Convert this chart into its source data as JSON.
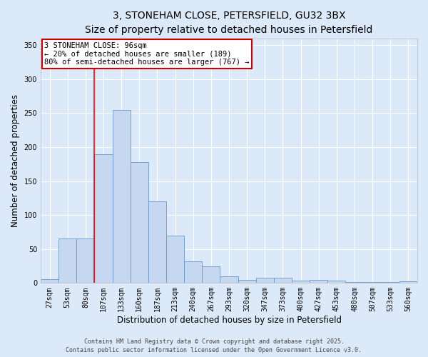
{
  "title_line1": "3, STONEHAM CLOSE, PETERSFIELD, GU32 3BX",
  "title_line2": "Size of property relative to detached houses in Petersfield",
  "xlabel": "Distribution of detached houses by size in Petersfield",
  "ylabel": "Number of detached properties",
  "categories": [
    "27sqm",
    "53sqm",
    "80sqm",
    "107sqm",
    "133sqm",
    "160sqm",
    "187sqm",
    "213sqm",
    "240sqm",
    "267sqm",
    "293sqm",
    "320sqm",
    "347sqm",
    "373sqm",
    "400sqm",
    "427sqm",
    "453sqm",
    "480sqm",
    "507sqm",
    "533sqm",
    "560sqm"
  ],
  "values": [
    6,
    65,
    65,
    190,
    255,
    178,
    120,
    70,
    32,
    25,
    10,
    5,
    8,
    8,
    4,
    5,
    3,
    1,
    1,
    1,
    2
  ],
  "bar_color": "#c5d8f0",
  "bar_edge_color": "#6699cc",
  "background_color": "#dce9f8",
  "grid_color": "#ffffff",
  "red_line_x": 2.5,
  "ylim": [
    0,
    360
  ],
  "yticks": [
    0,
    50,
    100,
    150,
    200,
    250,
    300,
    350
  ],
  "annotation_title": "3 STONEHAM CLOSE: 96sqm",
  "annotation_line1": "← 20% of detached houses are smaller (189)",
  "annotation_line2": "80% of semi-detached houses are larger (767) →",
  "annotation_box_color": "#ffffff",
  "annotation_box_edge": "#cc0000",
  "footer_line1": "Contains HM Land Registry data © Crown copyright and database right 2025.",
  "footer_line2": "Contains public sector information licensed under the Open Government Licence v3.0.",
  "title_fontsize": 10,
  "subtitle_fontsize": 9,
  "tick_fontsize": 7,
  "label_fontsize": 8.5,
  "annotation_fontsize": 7.5,
  "footer_fontsize": 6
}
